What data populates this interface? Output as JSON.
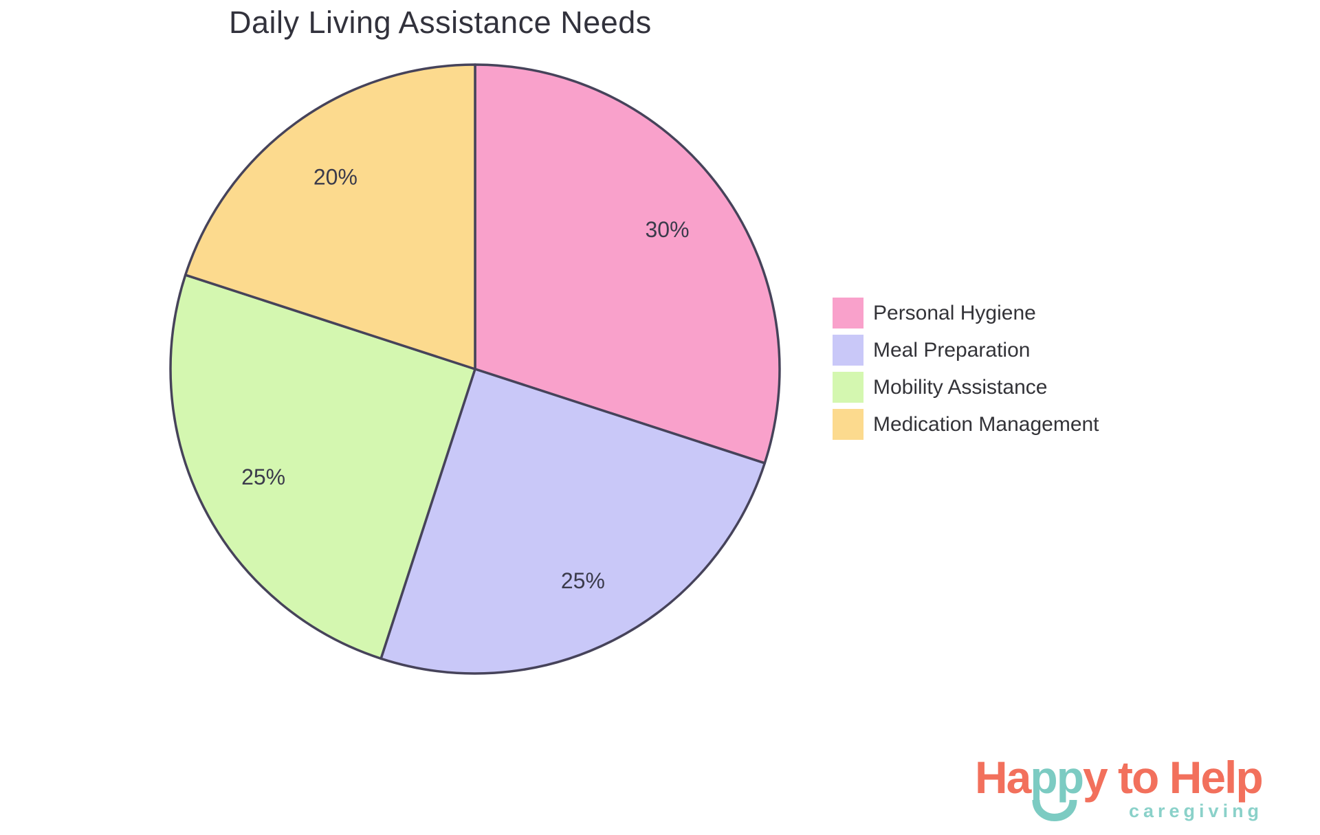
{
  "title": "Daily Living Assistance Needs",
  "chart_data": {
    "type": "pie",
    "title": "Daily Living Assistance Needs",
    "categories": [
      "Personal Hygiene",
      "Meal Preparation",
      "Mobility Assistance",
      "Medication Management"
    ],
    "values": [
      30,
      25,
      25,
      20
    ],
    "labels": [
      "30%",
      "25%",
      "25%",
      "20%"
    ],
    "colors": [
      "#F9A1CB",
      "#C9C8F8",
      "#D4F7B0",
      "#FCDA8E"
    ],
    "stroke_color": "#46435A",
    "label_color": "#3B3B4B",
    "start_angle": "top",
    "direction": "clockwise",
    "legend_position": "right",
    "label_distance": 0.78
  },
  "legend": {
    "items": [
      {
        "label": "Personal Hygiene",
        "color": "#F9A1CB"
      },
      {
        "label": "Meal Preparation",
        "color": "#C9C8F8"
      },
      {
        "label": "Mobility Assistance",
        "color": "#D4F7B0"
      },
      {
        "label": "Medication Management",
        "color": "#FCDA8E"
      }
    ]
  },
  "logo": {
    "main_parts": [
      {
        "text": "Ha",
        "color_key": "coral"
      },
      {
        "text": "pp",
        "color_key": "teal"
      },
      {
        "text": "y to Help",
        "color_key": "coral"
      }
    ],
    "tagline": "caregiving",
    "colors": {
      "coral": "#F2705C",
      "teal": "#7CCBC2",
      "tagline_teal": "#8AD1C9"
    }
  }
}
